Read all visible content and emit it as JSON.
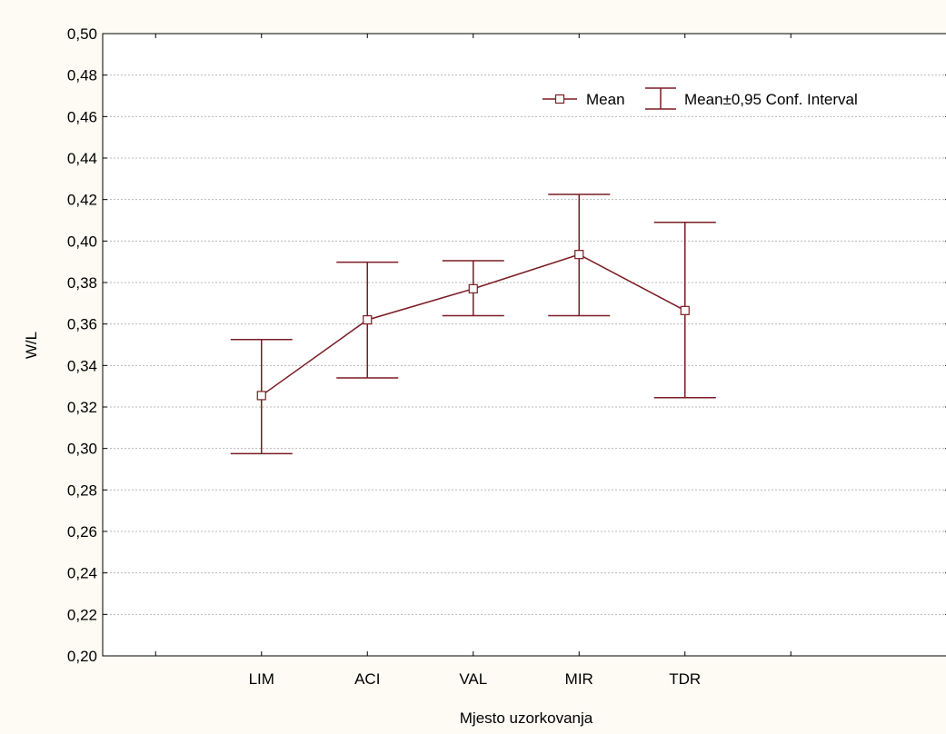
{
  "chart_data": {
    "type": "line",
    "xlabel": "Mjesto uzorkovanja",
    "ylabel": "W/L",
    "categories": [
      "LIM",
      "ACI",
      "VAL",
      "MIR",
      "TDR"
    ],
    "ylim": [
      0.2,
      0.5
    ],
    "yticks": [
      "0,20",
      "0,22",
      "0,24",
      "0,26",
      "0,28",
      "0,30",
      "0,32",
      "0,34",
      "0,36",
      "0,38",
      "0,40",
      "0,42",
      "0,44",
      "0,46",
      "0,48",
      "0,50"
    ],
    "grid": true,
    "legend_position": "top-right",
    "legend": {
      "mean_label": "Mean",
      "ci_label": "Mean±0,95 Conf. Interval"
    },
    "series": [
      {
        "name": "Mean",
        "values": [
          0.3255,
          0.362,
          0.377,
          0.3935,
          0.3665
        ],
        "ci_low": [
          0.2975,
          0.334,
          0.364,
          0.364,
          0.3245
        ],
        "ci_high": [
          0.3525,
          0.3898,
          0.3905,
          0.4225,
          0.409
        ]
      }
    ],
    "colors": {
      "series": "#7a1c24",
      "background": "#fdfbf3",
      "plot_bg": "#ffffff",
      "grid": "#b8b8b8"
    }
  }
}
